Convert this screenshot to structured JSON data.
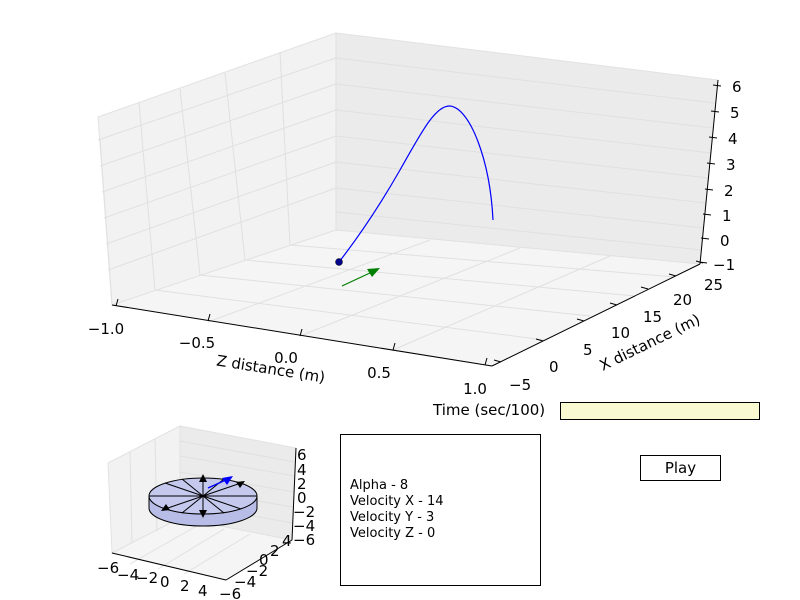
{
  "main_plot": {
    "xlabel": "Z distance (m)",
    "ylabel": "X distance (m)",
    "z_ticks": [
      "6",
      "5",
      "4",
      "3",
      "2",
      "1",
      "0",
      "−1"
    ],
    "x_ticks": [
      "−1.0",
      "−0.5",
      "0.0",
      "0.5",
      "1.0"
    ],
    "y_ticks": [
      "−5",
      "0",
      "5",
      "10",
      "15",
      "20",
      "25"
    ],
    "colors": {
      "trajectory": "#0000ff",
      "velocity_arrow": "#008000",
      "start_point": "#00008b"
    }
  },
  "small_plot": {
    "z_ticks": [
      "6",
      "4",
      "2",
      "0",
      "−2",
      "−4",
      "−6"
    ],
    "x_ticks": [
      "−6",
      "−4",
      "−2",
      "0",
      "2",
      "4"
    ],
    "y_ticks": [
      "−6",
      "−4",
      "−2",
      "0",
      "2",
      "4"
    ],
    "colors": {
      "disc_fill": "#b8bde8",
      "arrow": "#0000ff"
    }
  },
  "slider": {
    "label": "Time (sec/100)"
  },
  "info": {
    "alpha": "Alpha - 8",
    "velocity_x": "Velocity X - 14",
    "velocity_y": "Velocity Y - 3",
    "velocity_z": "Velocity Z - 0"
  },
  "play_button": {
    "label": "Play"
  }
}
